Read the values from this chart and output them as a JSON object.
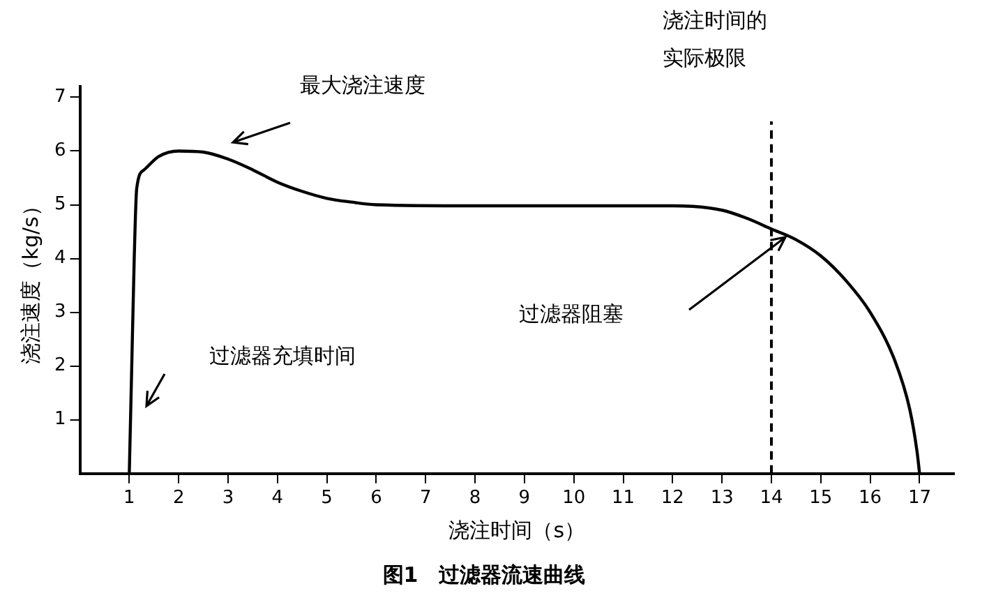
{
  "chart_data": {
    "type": "line",
    "title": "图1　过滤器流速曲线",
    "xlabel": "浇注时间（s）",
    "ylabel": "浇注速度（kg/s）",
    "x": [
      1,
      1.05,
      1.1,
      1.15,
      1.3,
      1.6,
      2,
      2.5,
      3,
      3.5,
      4,
      4.5,
      5,
      5.5,
      6,
      8,
      10,
      12,
      13,
      13.5,
      14,
      14.5,
      15,
      15.5,
      16,
      16.5,
      16.8,
      16.95,
      17
    ],
    "series": [
      {
        "color": "#000000",
        "values": [
          0,
          2,
          4,
          5.3,
          5.65,
          5.9,
          6,
          5.98,
          5.85,
          5.65,
          5.42,
          5.25,
          5.12,
          5.05,
          5,
          4.98,
          4.98,
          4.98,
          4.9,
          4.75,
          4.55,
          4.35,
          4.05,
          3.6,
          3.0,
          2.1,
          1.2,
          0.4,
          0
        ]
      }
    ],
    "xlim": [
      0,
      17.7
    ],
    "ylim": [
      0,
      7.2
    ],
    "xticks": [
      1,
      2,
      3,
      4,
      5,
      6,
      7,
      8,
      9,
      10,
      11,
      12,
      13,
      14,
      15,
      16,
      17
    ],
    "yticks": [
      1,
      2,
      3,
      4,
      5,
      6,
      7
    ],
    "ref_lines": [
      {
        "axis": "x",
        "value": 14,
        "label": "浇注时间的实际极限",
        "line_style": "dashed",
        "color": "#000000"
      }
    ],
    "annotations": [
      "最大浇注速度",
      "过滤器充填时间",
      "过滤器阻塞"
    ],
    "grid": false,
    "legend": false,
    "marker": "none",
    "line_style": "solid"
  }
}
